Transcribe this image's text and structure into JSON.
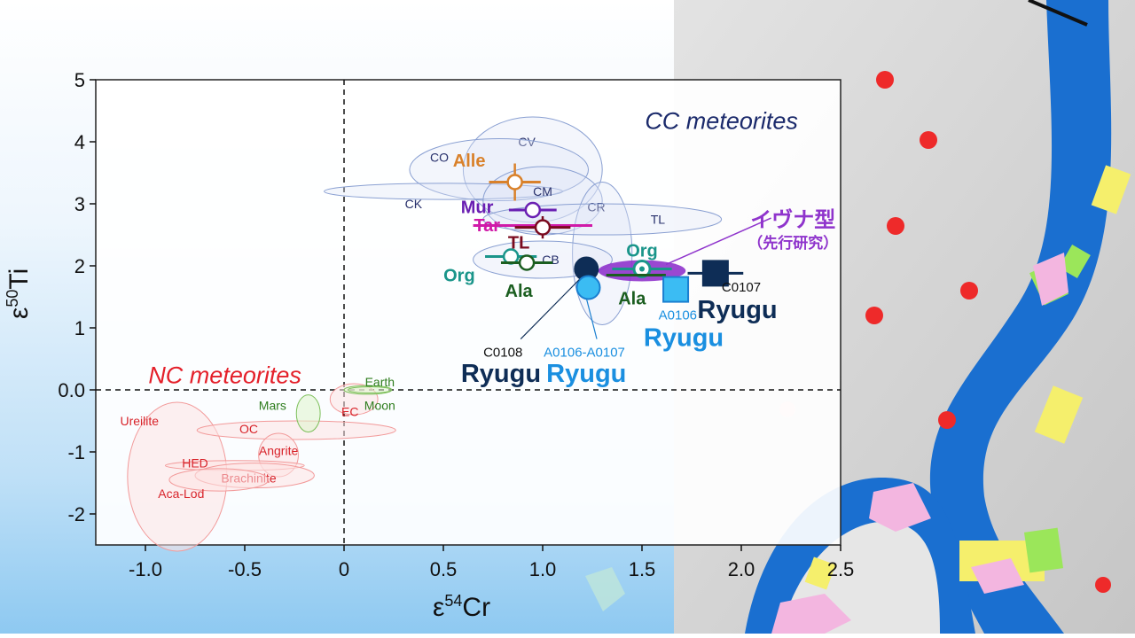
{
  "chart_data": {
    "type": "scatter",
    "title": "",
    "xlabel": {
      "base": "ε",
      "sup": "54",
      "rest": "Cr"
    },
    "ylabel": {
      "base": "ε",
      "sup": "50",
      "rest": "Ti"
    },
    "xlim": [
      -1.25,
      2.5
    ],
    "ylim": [
      -2.5,
      5
    ],
    "x_ticks": [
      -1.0,
      -0.5,
      0,
      0.5,
      1.0,
      1.5,
      2.0,
      2.5
    ],
    "x_tick_labels": [
      "-1.0",
      "-0.5",
      "0",
      "0.5",
      "1.0",
      "1.5",
      "2.0",
      "2.5"
    ],
    "y_ticks": [
      -2,
      -1,
      0,
      1,
      2,
      3,
      4,
      5
    ],
    "y_tick_labels": [
      "-2",
      "-1",
      "0.0",
      "1",
      "2",
      "3",
      "4",
      "5"
    ],
    "reference_lines": {
      "x": 0,
      "y": 0
    },
    "group_labels": [
      {
        "text": "CC meteorites",
        "x": 1.9,
        "y": 4.35,
        "color": "#1b2a6b"
      },
      {
        "text": "NC meteorites",
        "x": -0.6,
        "y": 0.25,
        "color": "#e4202a"
      }
    ],
    "cc_fields": [
      {
        "label": "CV",
        "cx": 0.95,
        "cy": 3.55,
        "rx": 0.35,
        "ry": 0.85,
        "lx": 0.92,
        "ly": 4.0
      },
      {
        "label": "CO",
        "cx": 0.78,
        "cy": 3.55,
        "rx": 0.45,
        "ry": 0.5,
        "lx": 0.48,
        "ly": 3.75
      },
      {
        "label": "CK",
        "cx": 0.5,
        "cy": 3.2,
        "rx": 0.6,
        "ry": 0.13,
        "lx": 0.35,
        "ly": 3.0
      },
      {
        "label": "CM",
        "cx": 1.0,
        "cy": 3.05,
        "rx": 0.3,
        "ry": 0.55,
        "lx": 1.0,
        "ly": 3.2
      },
      {
        "label": "CR",
        "cx": 1.3,
        "cy": 2.2,
        "rx": 0.15,
        "ry": 1.15,
        "lx": 1.27,
        "ly": 2.95
      },
      {
        "label": "TL",
        "cx": 1.3,
        "cy": 2.75,
        "rx": 0.6,
        "ry": 0.25,
        "lx": 1.58,
        "ly": 2.75
      },
      {
        "label": "CB",
        "cx": 1.0,
        "cy": 2.1,
        "rx": 0.35,
        "ry": 0.3,
        "lx": 1.04,
        "ly": 2.1
      }
    ],
    "nc_fields": [
      {
        "label": "Ureilite",
        "cx": -0.84,
        "cy": -1.4,
        "rx": 0.25,
        "ry": 1.2,
        "lx": -1.03,
        "ly": -0.5
      },
      {
        "label": "OC",
        "cx": -0.24,
        "cy": -0.65,
        "rx": 0.5,
        "ry": 0.15,
        "lx": -0.48,
        "ly": -0.63
      },
      {
        "label": "Angrite",
        "cx": -0.33,
        "cy": -1.05,
        "rx": 0.1,
        "ry": 0.35,
        "lx": -0.33,
        "ly": -0.98
      },
      {
        "label": "HED",
        "cx": -0.55,
        "cy": -1.22,
        "rx": 0.35,
        "ry": 0.08,
        "lx": -0.75,
        "ly": -1.18
      },
      {
        "label": "Brachinite",
        "cx": -0.45,
        "cy": -1.38,
        "rx": 0.3,
        "ry": 0.2,
        "lx": -0.48,
        "ly": -1.42
      },
      {
        "label": "Aca-Lod",
        "cx": -0.63,
        "cy": -1.45,
        "rx": 0.25,
        "ry": 0.18,
        "lx": -0.82,
        "ly": -1.67
      },
      {
        "label": "EC",
        "cx": 0.05,
        "cy": -0.15,
        "rx": 0.12,
        "ry": 0.25,
        "lx": 0.03,
        "ly": -0.35
      },
      {
        "label": "Mars",
        "cx": -0.18,
        "cy": -0.38,
        "rx": 0.06,
        "ry": 0.3,
        "lx": -0.36,
        "ly": -0.25,
        "fill": "#dff4cc",
        "stroke": "#7cbf5a",
        "color": "#2e7d1e"
      },
      {
        "label": "Earth",
        "cx": 0.12,
        "cy": 0.0,
        "rx": 0.12,
        "ry": 0.07,
        "lx": 0.18,
        "ly": 0.13,
        "fill": "#dff4cc",
        "stroke": "#7cbf5a",
        "color": "#2e7d1e"
      },
      {
        "label": "Moon",
        "cx": 0.13,
        "cy": 0.0,
        "rx": 0.11,
        "ry": 0.05,
        "lx": 0.18,
        "ly": -0.25,
        "fill": "none",
        "stroke": "#7cbf5a",
        "color": "#2e7d1e"
      }
    ],
    "points": [
      {
        "label": "Alle",
        "x": 0.86,
        "y": 3.35,
        "xerr": 0.13,
        "yerr": 0.3,
        "color": "#d9812a",
        "marker": "open-circle",
        "lx": 0.63,
        "ly": 3.7,
        "bold": true
      },
      {
        "label": "Mur",
        "x": 0.95,
        "y": 2.9,
        "xerr": 0.12,
        "yerr": 0.0,
        "color": "#6a1fb2",
        "marker": "open-circle",
        "lx": 0.67,
        "ly": 2.95,
        "bold": true
      },
      {
        "label": "Tar",
        "x": 0.95,
        "y": 2.65,
        "xerr": 0.3,
        "yerr": 0.0,
        "color": "#d01aa8",
        "marker": "none",
        "lx": 0.72,
        "ly": 2.66,
        "bold": true
      },
      {
        "label": "TL",
        "x": 1.0,
        "y": 2.62,
        "xerr": 0.14,
        "yerr": 0.18,
        "color": "#7a0a1e",
        "marker": "open-circle",
        "lx": 0.88,
        "ly": 2.38,
        "bold": true
      },
      {
        "label": "Org",
        "x": 0.84,
        "y": 2.15,
        "xerr": 0.13,
        "yerr": 0.0,
        "color": "#1a958a",
        "marker": "open-circle",
        "lx": 0.58,
        "ly": 1.85,
        "bold": true
      },
      {
        "label": "Ala",
        "x": 0.92,
        "y": 2.05,
        "xerr": 0.13,
        "yerr": 0.0,
        "color": "#1b5e20",
        "marker": "open-circle",
        "lx": 0.88,
        "ly": 1.6,
        "bold": true
      },
      {
        "label": "Org",
        "x": 1.5,
        "y": 1.95,
        "xerr": 0.15,
        "yerr": 0.0,
        "color": "#1a958a",
        "marker": "dot-circle",
        "lx": 1.5,
        "ly": 2.25,
        "bold": true
      },
      {
        "label": "Ala",
        "x": 1.47,
        "y": 1.85,
        "xerr": 0.15,
        "yerr": 0.0,
        "color": "#1b5e20",
        "marker": "none",
        "lx": 1.45,
        "ly": 1.48,
        "bold": true
      }
    ],
    "ivuna": {
      "label_main": "イヴナ型",
      "label_sub": "（先行研究）",
      "cx": 1.5,
      "cy": 1.92,
      "rx": 0.22,
      "ry": 0.17,
      "color": "#8f34cc"
    },
    "ryugu": [
      {
        "sample": "C0108",
        "name": "Ryugu",
        "x": 1.22,
        "y": 1.95,
        "marker": "filled-circle",
        "color": "#0e2d56",
        "lx": 0.8,
        "ly": 0.62,
        "nlx": 0.79,
        "nly": 0.27
      },
      {
        "sample": "A0106-A0107",
        "name": "Ryugu",
        "x": 1.23,
        "y": 1.65,
        "marker": "filled-circle",
        "color": "#3bbcf3",
        "lx": 1.21,
        "ly": 0.62,
        "nlx": 1.22,
        "nly": 0.27
      },
      {
        "sample": "A0106",
        "name": "Ryugu",
        "x": 1.67,
        "y": 1.62,
        "marker": "filled-square",
        "color": "#3bbcf3",
        "lx": 1.68,
        "ly": 1.22,
        "nlx": 1.71,
        "nly": 0.85
      },
      {
        "sample": "C0107",
        "name": "Ryugu",
        "x": 1.87,
        "y": 1.88,
        "xerr": 0.14,
        "marker": "filled-square",
        "color": "#0e2d56",
        "lx": 2.0,
        "ly": 1.67,
        "nlx": 1.98,
        "nly": 1.3
      }
    ]
  }
}
